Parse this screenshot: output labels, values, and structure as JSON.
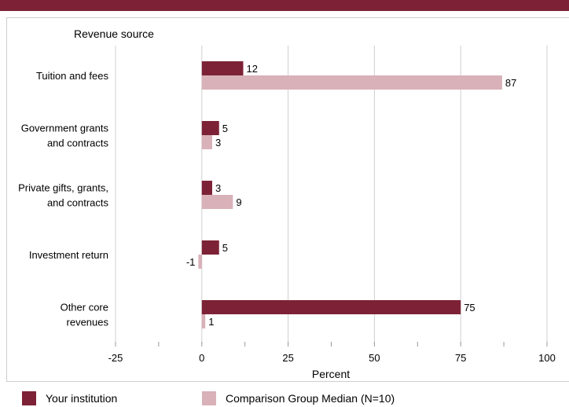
{
  "chart_data": {
    "type": "bar",
    "orientation": "horizontal",
    "category_header": "Revenue source",
    "categories": [
      [
        "Tuition and fees"
      ],
      [
        "Government grants",
        "and contracts"
      ],
      [
        "Private gifts, grants,",
        "and contracts"
      ],
      [
        "Investment return"
      ],
      [
        "Other core",
        "revenues"
      ]
    ],
    "series": [
      {
        "name": "Your institution",
        "color": "#7d2236",
        "values": [
          12,
          5,
          3,
          5,
          75
        ]
      },
      {
        "name": "Comparison Group Median (N=10)",
        "color": "#d9b1b9",
        "values": [
          87,
          3,
          9,
          -1,
          1
        ]
      }
    ],
    "xlabel": "Percent",
    "xlim": [
      -25,
      100
    ],
    "xticks": [
      -25,
      0,
      25,
      50,
      75,
      100
    ],
    "grid": true,
    "legend_position": "bottom"
  }
}
